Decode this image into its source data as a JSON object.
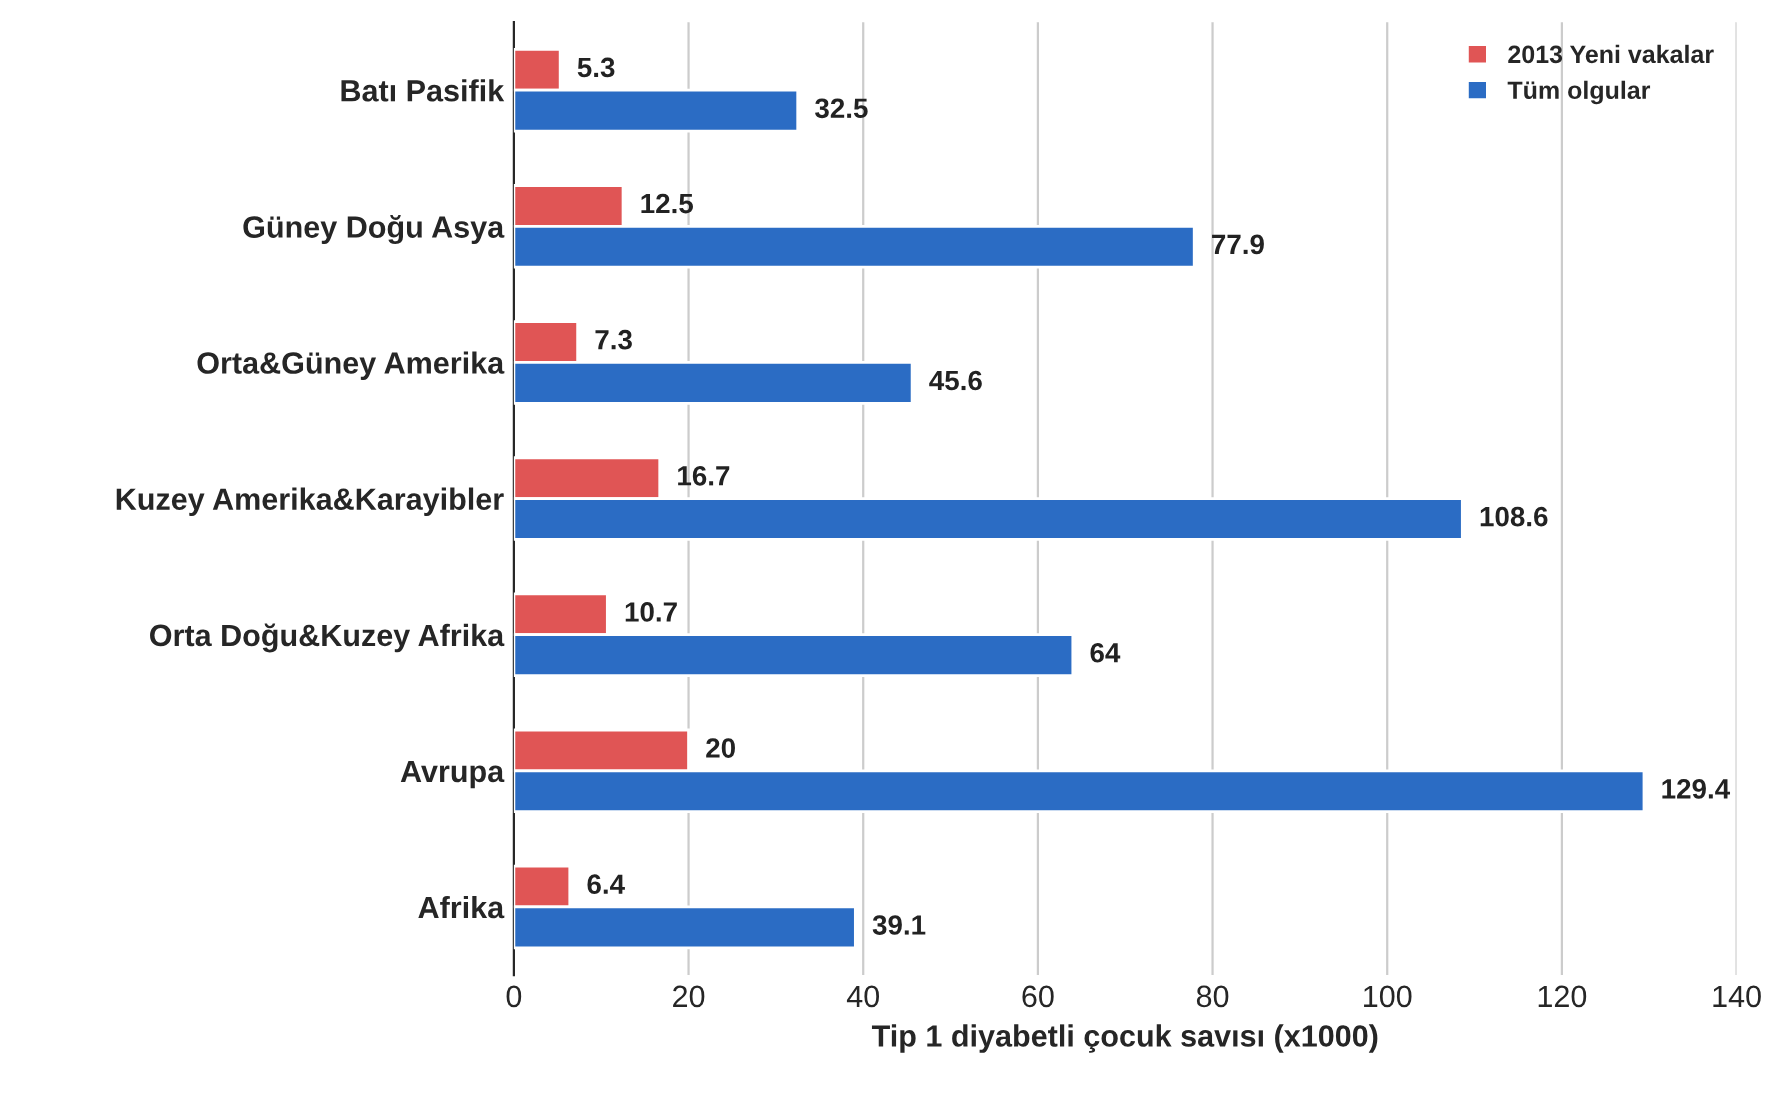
{
  "chart_data": {
    "type": "bar",
    "orientation": "horizontal",
    "xlabel": "Tip 1 diyabetli çocuk savısı (x1000)",
    "categories": [
      "Batı Pasifik",
      "Güney Doğu Asya",
      "Orta&Güney Amerika",
      "Kuzey Amerika&Karayibler",
      "Orta Doğu&Kuzey Afrika",
      "Avrupa",
      "Afrika"
    ],
    "series": [
      {
        "name": "2013 Yeni vakalar",
        "color": "#e05555",
        "values": [
          5.3,
          12.5,
          7.3,
          16.7,
          10.7,
          20,
          6.4
        ]
      },
      {
        "name": "Tüm olgular",
        "color": "#2b6cc4",
        "values": [
          32.5,
          77.9,
          45.6,
          108.6,
          64,
          129.4,
          39.1
        ]
      }
    ],
    "xlim": [
      0,
      140
    ],
    "xticks": [
      0,
      20,
      40,
      60,
      80,
      100,
      120,
      140
    ],
    "grid": "x",
    "legend": "top right",
    "data_labels": true
  }
}
